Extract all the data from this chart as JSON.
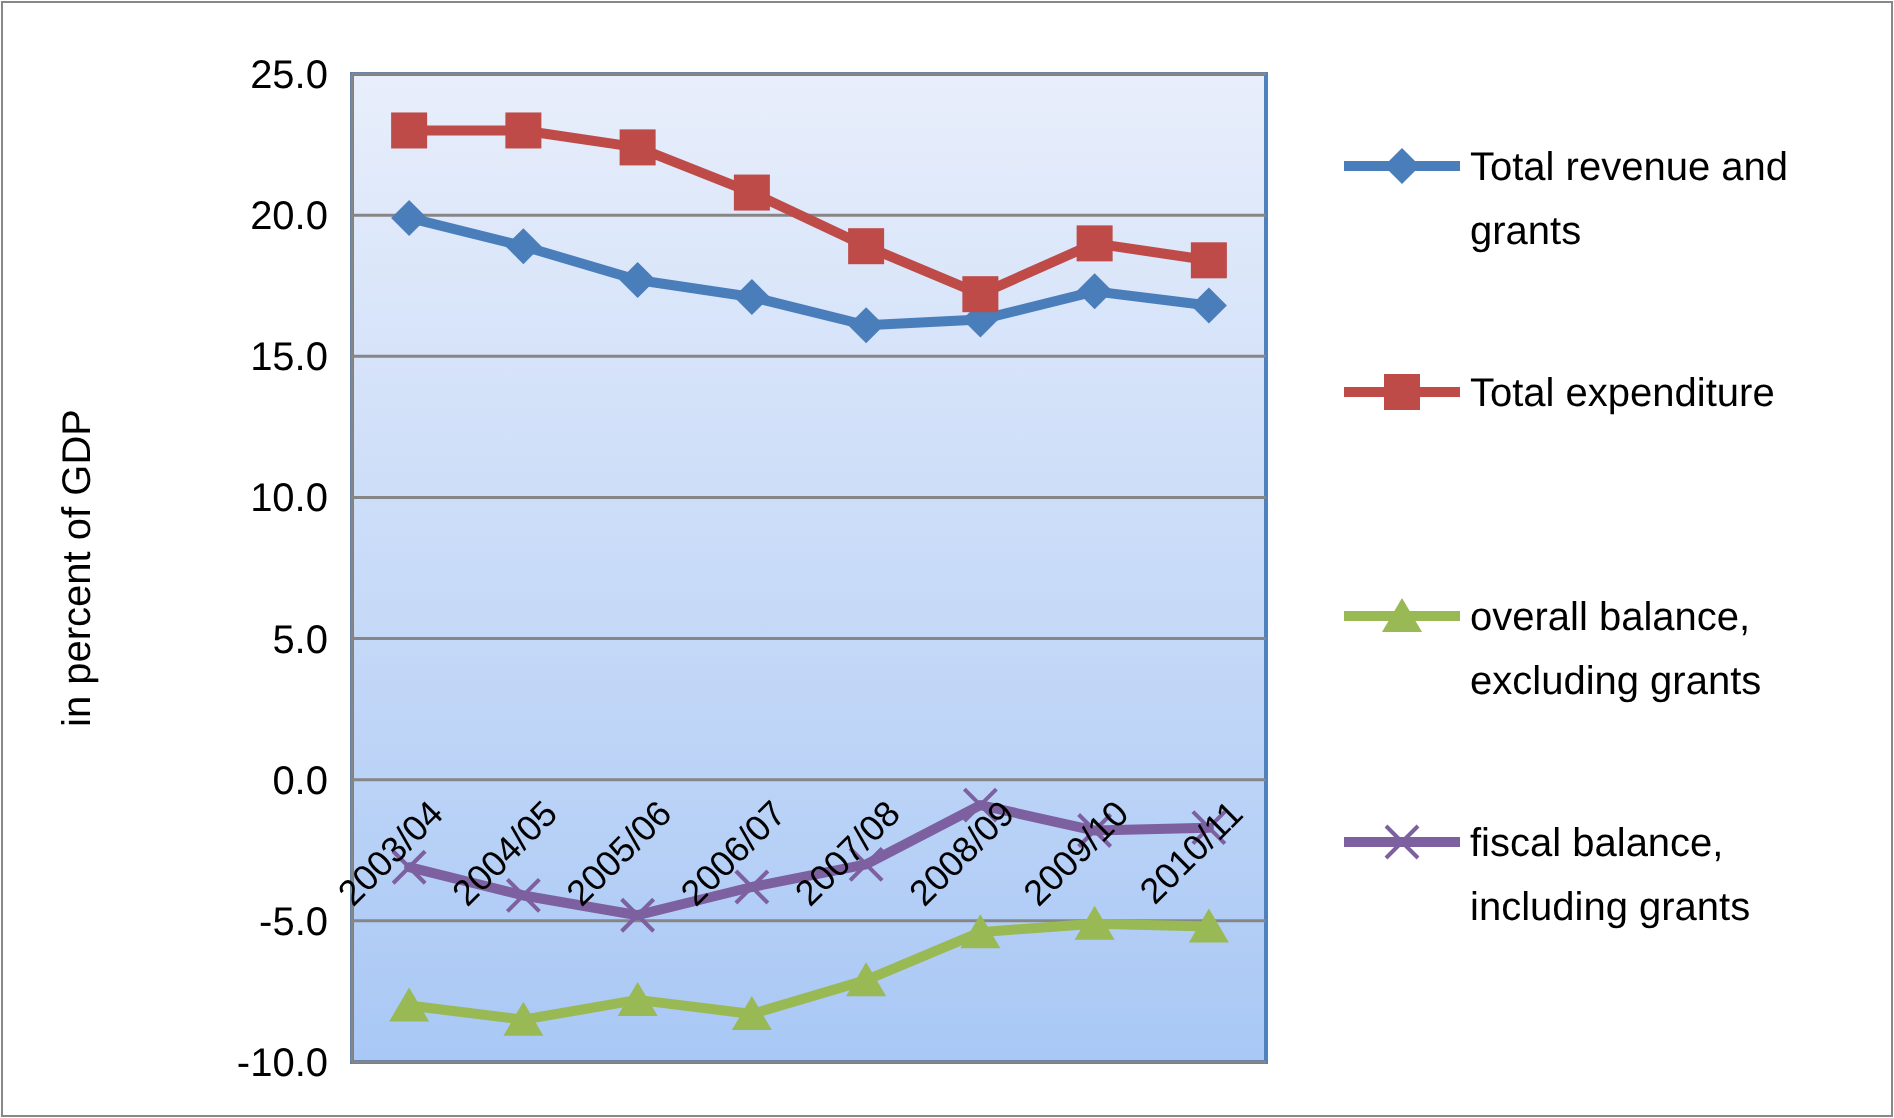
{
  "chart_data": {
    "type": "line",
    "ylabel": "in percent of GDP",
    "categories": [
      "2003/04",
      "2004/05",
      "2005/06",
      "2006/07",
      "2007/08",
      "2008/09",
      "2009/10",
      "2010/11"
    ],
    "series": [
      {
        "name": "Total revenue and grants",
        "color": "#4a7ebb",
        "marker": "diamond",
        "values": [
          19.9,
          18.9,
          17.7,
          17.1,
          16.1,
          16.3,
          17.3,
          16.8
        ]
      },
      {
        "name": "Total expenditure",
        "color": "#be4b48",
        "marker": "square",
        "values": [
          23.0,
          23.0,
          22.4,
          20.8,
          18.9,
          17.2,
          19.0,
          18.4
        ]
      },
      {
        "name": "overall balance, excluding grants",
        "color": "#98b954",
        "marker": "triangle",
        "values": [
          -8.0,
          -8.5,
          -7.8,
          -8.3,
          -7.1,
          -5.4,
          -5.1,
          -5.2
        ]
      },
      {
        "name": "fiscal balance, including grants",
        "color": "#7d60a0",
        "marker": "cross",
        "values": [
          -3.1,
          -4.1,
          -4.8,
          -3.8,
          -3.0,
          -0.9,
          -1.8,
          -1.7
        ]
      }
    ],
    "ylim": [
      -10,
      25
    ],
    "yticks": [
      {
        "value": -10,
        "label": "-10.0"
      },
      {
        "value": -5,
        "label": "-5.0"
      },
      {
        "value": 0,
        "label": "0.0"
      },
      {
        "value": 5,
        "label": "5.0"
      },
      {
        "value": 10,
        "label": "10.0"
      },
      {
        "value": 15,
        "label": "15.0"
      },
      {
        "value": 20,
        "label": "20.0"
      },
      {
        "value": 25,
        "label": "25.0"
      }
    ],
    "grid": "y",
    "legend": "right"
  }
}
